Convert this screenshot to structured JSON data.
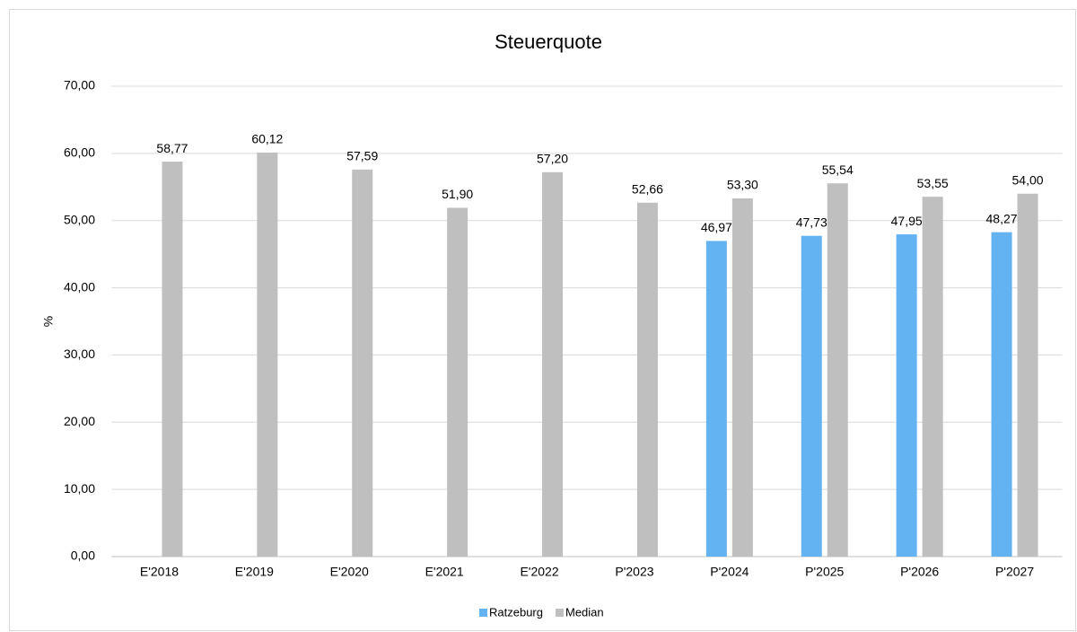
{
  "chart_data": {
    "type": "bar",
    "title": "Steuerquote",
    "y_label": "%",
    "categories": [
      "E'2018",
      "E'2019",
      "E'2020",
      "E'2021",
      "E'2022",
      "P'2023",
      "P'2024",
      "P'2025",
      "P'2026",
      "P'2027"
    ],
    "series": [
      {
        "name": "Ratzeburg",
        "color": "#63b3f3",
        "values": [
          null,
          null,
          null,
          null,
          null,
          null,
          46.97,
          47.73,
          47.95,
          48.27
        ],
        "value_labels": [
          null,
          null,
          null,
          null,
          null,
          null,
          "46,97",
          "47,73",
          "47,95",
          "48,27"
        ]
      },
      {
        "name": "Median",
        "color": "#bfbfbf",
        "values": [
          58.77,
          60.12,
          57.59,
          51.9,
          57.2,
          52.66,
          53.3,
          55.54,
          53.55,
          54.0
        ],
        "value_labels": [
          "58,77",
          "60,12",
          "57,59",
          "51,90",
          "57,20",
          "52,66",
          "53,30",
          "55,54",
          "53,55",
          "54,00"
        ]
      }
    ],
    "ylim": [
      0,
      70
    ],
    "yticks": [
      {
        "value": 0,
        "label": "0,00"
      },
      {
        "value": 10,
        "label": "10,00"
      },
      {
        "value": 20,
        "label": "20,00"
      },
      {
        "value": 30,
        "label": "30,00"
      },
      {
        "value": 40,
        "label": "40,00"
      },
      {
        "value": 50,
        "label": "50,00"
      },
      {
        "value": 60,
        "label": "60,00"
      },
      {
        "value": 70,
        "label": "70,00"
      }
    ],
    "grid": true,
    "legend": "bottom"
  }
}
